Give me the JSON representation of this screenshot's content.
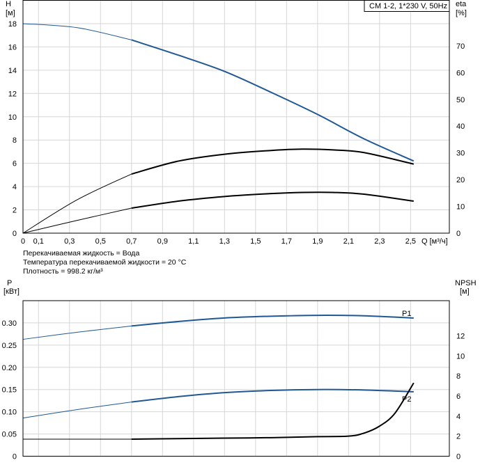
{
  "colors": {
    "blue": "#1f5895",
    "black": "#000000",
    "grid": "#d6d6d6"
  },
  "top_chart": {
    "title_box": "CM 1-2, 1*230 V, 50Hz",
    "y_left_label": {
      "line1": "H",
      "line2": "[м]"
    },
    "y_right_label": {
      "line1": "eta",
      "line2": "[%]"
    },
    "x_label": "Q [м³/ч]",
    "x_ticks": [
      "0",
      "0,1",
      "0,3",
      "0,5",
      "0,7",
      "0,9",
      "1,1",
      "1,3",
      "1,5",
      "1,7",
      "1,9",
      "2,1",
      "2,3",
      "2,5"
    ],
    "x_tick_values": [
      0,
      0.1,
      0.3,
      0.5,
      0.7,
      0.9,
      1.1,
      1.3,
      1.5,
      1.7,
      1.9,
      2.1,
      2.3,
      2.5
    ],
    "y_left_ticks": [
      "0",
      "2",
      "4",
      "6",
      "8",
      "10",
      "12",
      "14",
      "16",
      "18"
    ],
    "y_right_ticks": [
      "0",
      "10",
      "20",
      "30",
      "40",
      "50",
      "60",
      "70"
    ]
  },
  "fluid_info": {
    "line1": "Перекачиваемая жидкость = Вода",
    "line2": "Температура перекачиваемой жидкости = 20 °C",
    "line3": "Плотность = 998.2 кг/м³"
  },
  "bottom_chart": {
    "y_left_label": {
      "line1": "P",
      "line2": "[кВт]"
    },
    "y_right_label": {
      "line1": "NPSH",
      "line2": "[м]"
    },
    "y_left_ticks": [
      "0",
      "0.05",
      "0.10",
      "0.15",
      "0.20",
      "0.25",
      "0.30"
    ],
    "y_right_ticks": [
      "0",
      "2",
      "4",
      "6",
      "8",
      "10",
      "12"
    ],
    "series_labels": {
      "p1": "P1",
      "p2": "P2"
    }
  },
  "chart_data": [
    {
      "type": "line",
      "title": "CM 1-2, 1*230 V, 50Hz",
      "xlabel": "Q [м³/ч]",
      "ylabel": "H [м]",
      "ylabel_right": "eta [%]",
      "xlim": [
        0,
        2.75
      ],
      "ylim": [
        0,
        20
      ],
      "ylim_right": [
        0,
        87
      ],
      "grid": true,
      "series": [
        {
          "axis": "left",
          "color": "#1f5895",
          "x": [
            0,
            0.35,
            0.7,
            1.0,
            1.3,
            1.6,
            1.9,
            2.2,
            2.52
          ],
          "y": [
            18.0,
            17.65,
            16.6,
            15.3,
            13.9,
            12.1,
            10.2,
            8.1,
            6.2
          ]
        },
        {
          "axis": "right",
          "color": "#000000",
          "x": [
            0,
            0.35,
            0.7,
            1.0,
            1.3,
            1.6,
            1.8,
            2.0,
            2.2,
            2.52
          ],
          "y": [
            0,
            12.5,
            22.1,
            26.9,
            29.5,
            30.9,
            31.4,
            31.1,
            30.1,
            25.8
          ]
        },
        {
          "axis": "left",
          "color": "#000000",
          "x": [
            0,
            0.35,
            0.7,
            1.0,
            1.3,
            1.6,
            1.8,
            2.0,
            2.2,
            2.52
          ],
          "y": [
            0,
            1.1,
            2.15,
            2.75,
            3.15,
            3.4,
            3.5,
            3.5,
            3.35,
            2.75
          ]
        }
      ]
    },
    {
      "type": "line",
      "xlabel": "Q [м³/ч]",
      "ylabel": "P [кВт]",
      "ylabel_right": "NPSH [м]",
      "xlim": [
        0,
        2.75
      ],
      "ylim": [
        0,
        0.35
      ],
      "ylim_right": [
        0,
        15.5
      ],
      "grid": true,
      "series": [
        {
          "name": "P1",
          "axis": "left",
          "color": "#1f5895",
          "x": [
            0,
            0.35,
            0.7,
            1.0,
            1.3,
            1.6,
            1.9,
            2.2,
            2.52
          ],
          "y": [
            0.263,
            0.279,
            0.293,
            0.303,
            0.311,
            0.315,
            0.317,
            0.316,
            0.311
          ]
        },
        {
          "name": "P2",
          "axis": "left",
          "color": "#1f5895",
          "x": [
            0,
            0.35,
            0.7,
            1.0,
            1.3,
            1.6,
            1.9,
            2.2,
            2.52
          ],
          "y": [
            0.086,
            0.105,
            0.122,
            0.134,
            0.143,
            0.148,
            0.15,
            0.149,
            0.145
          ]
        },
        {
          "name": "NPSH",
          "axis": "right",
          "color": "#000000",
          "x": [
            0.7,
            1.0,
            1.3,
            1.6,
            1.9,
            2.1,
            2.2,
            2.3,
            2.4,
            2.52
          ],
          "y": [
            1.7,
            1.75,
            1.8,
            1.85,
            1.95,
            2.0,
            2.3,
            3.0,
            4.3,
            7.3
          ]
        }
      ]
    }
  ]
}
